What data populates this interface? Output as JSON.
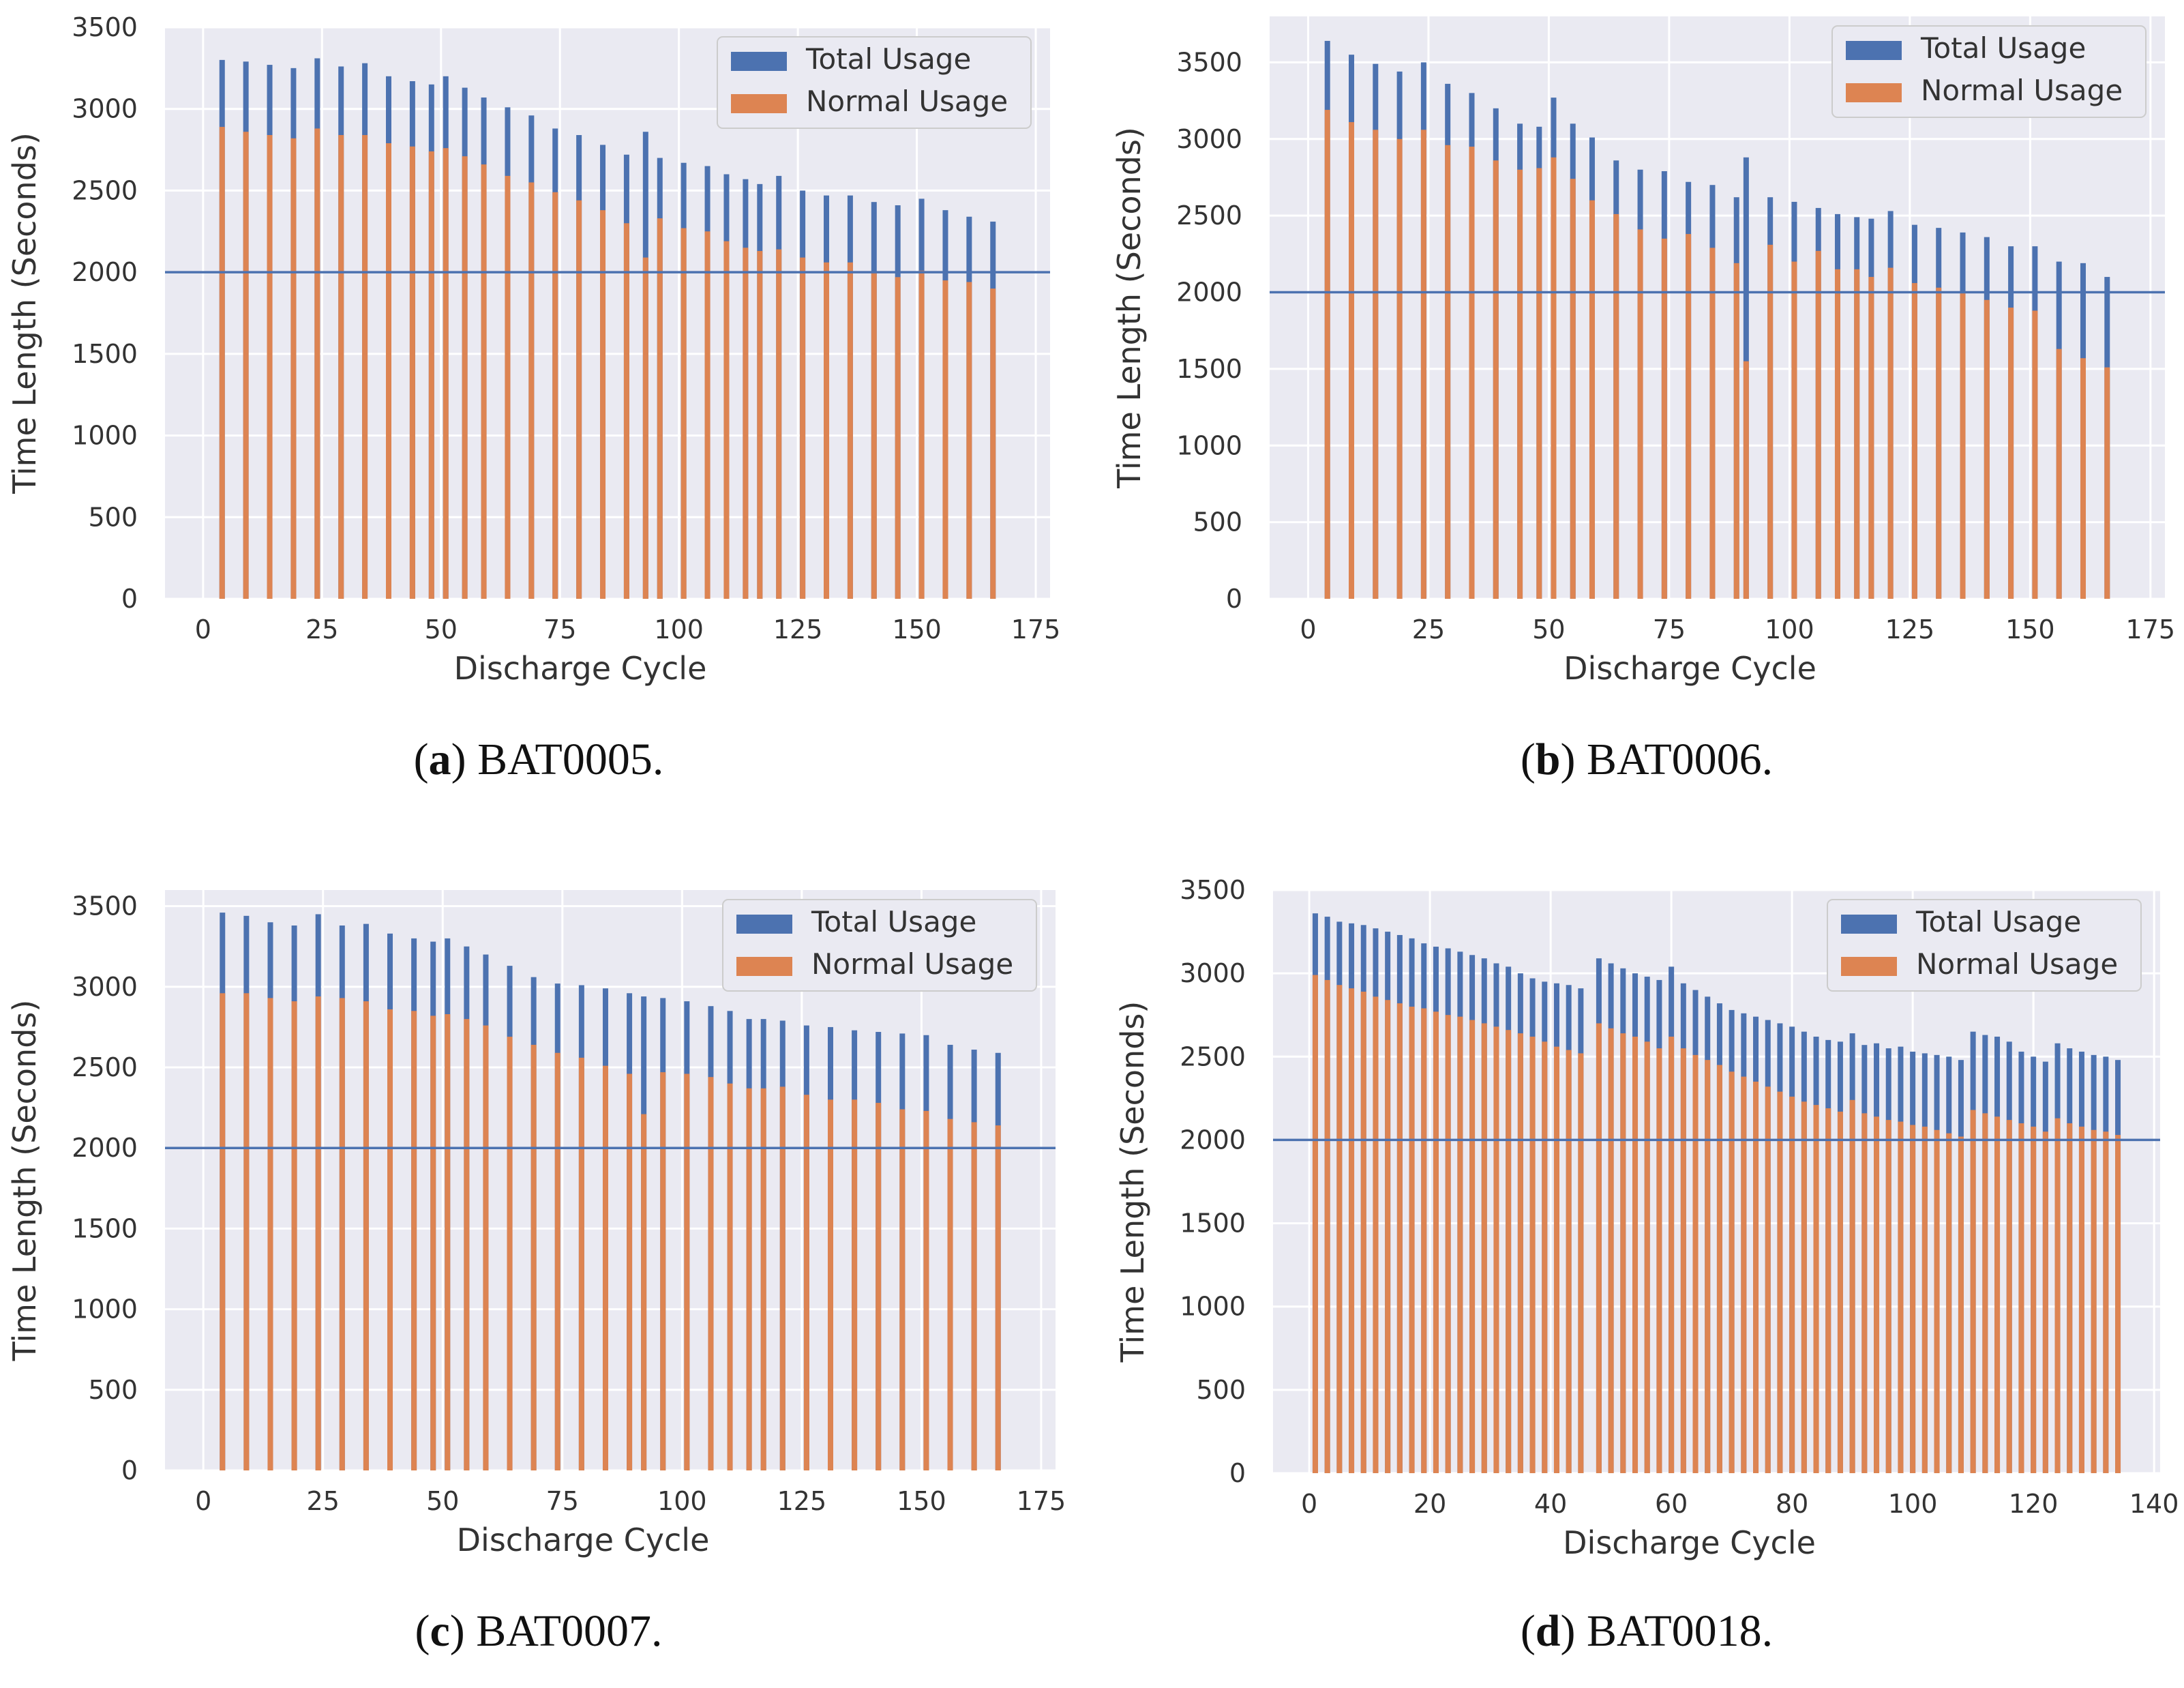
{
  "chart_data": [
    {
      "id": "a",
      "type": "bar",
      "caption_letter": "a",
      "caption_text": "BAT0005.",
      "xlabel": "Discharge Cycle",
      "ylabel": "Time Length (Seconds)",
      "xlim": [
        -8,
        178
      ],
      "ylim": [
        0,
        3500
      ],
      "xticks": [
        0,
        25,
        50,
        75,
        100,
        125,
        150,
        175
      ],
      "yticks": [
        0,
        500,
        1000,
        1500,
        2000,
        2500,
        3000,
        3500
      ],
      "threshold": 2000,
      "legend": [
        "Total Usage",
        "Normal Usage"
      ],
      "legend_position": "top-right",
      "x": [
        4,
        9,
        14,
        19,
        24,
        29,
        34,
        39,
        44,
        48,
        51,
        55,
        59,
        64,
        69,
        74,
        79,
        84,
        89,
        93,
        96,
        101,
        106,
        110,
        114,
        117,
        121,
        126,
        131,
        136,
        141,
        146,
        151,
        156,
        161,
        166
      ],
      "series": [
        {
          "name": "Total Usage",
          "values": [
            3300,
            3290,
            3270,
            3250,
            3310,
            3260,
            3280,
            3200,
            3170,
            3150,
            3200,
            3130,
            3070,
            3010,
            2960,
            2880,
            2840,
            2780,
            2720,
            2860,
            2700,
            2670,
            2650,
            2600,
            2570,
            2540,
            2590,
            2500,
            2470,
            2470,
            2430,
            2410,
            2450,
            2380,
            2340,
            2310
          ]
        },
        {
          "name": "Normal Usage",
          "values": [
            2890,
            2860,
            2840,
            2820,
            2880,
            2840,
            2840,
            2790,
            2770,
            2740,
            2760,
            2710,
            2660,
            2590,
            2550,
            2490,
            2440,
            2380,
            2300,
            2090,
            2330,
            2270,
            2250,
            2190,
            2150,
            2130,
            2140,
            2090,
            2060,
            2060,
            2000,
            1970,
            2010,
            1950,
            1940,
            1900
          ]
        }
      ]
    },
    {
      "id": "b",
      "type": "bar",
      "caption_letter": "b",
      "caption_text": "BAT0006.",
      "xlabel": "Discharge Cycle",
      "ylabel": "Time Length (Seconds)",
      "xlim": [
        -8,
        178
      ],
      "ylim": [
        0,
        3800
      ],
      "xticks": [
        0,
        25,
        50,
        75,
        100,
        125,
        150,
        175
      ],
      "yticks": [
        0,
        500,
        1000,
        1500,
        2000,
        2500,
        3000,
        3500
      ],
      "threshold": 2000,
      "legend": [
        "Total Usage",
        "Normal Usage"
      ],
      "legend_position": "top-right",
      "x": [
        4,
        9,
        14,
        19,
        24,
        29,
        34,
        39,
        44,
        48,
        51,
        55,
        59,
        64,
        69,
        74,
        79,
        84,
        89,
        91,
        96,
        101,
        106,
        110,
        114,
        117,
        121,
        126,
        131,
        136,
        141,
        146,
        151,
        156,
        161,
        166
      ],
      "series": [
        {
          "name": "Total Usage",
          "values": [
            3640,
            3550,
            3490,
            3440,
            3500,
            3360,
            3300,
            3200,
            3100,
            3080,
            3270,
            3100,
            3010,
            2860,
            2800,
            2790,
            2720,
            2700,
            2620,
            2880,
            2620,
            2590,
            2550,
            2510,
            2490,
            2480,
            2530,
            2440,
            2420,
            2390,
            2360,
            2300,
            2300,
            2200,
            2190,
            2100
          ]
        },
        {
          "name": "Normal Usage",
          "values": [
            3190,
            3110,
            3060,
            3000,
            3060,
            2960,
            2950,
            2860,
            2800,
            2810,
            2880,
            2740,
            2600,
            2510,
            2410,
            2350,
            2380,
            2290,
            2190,
            1550,
            2310,
            2200,
            2270,
            2150,
            2150,
            2100,
            2160,
            2060,
            2030,
            2000,
            1950,
            1900,
            1880,
            1630,
            1570,
            1510
          ]
        }
      ]
    },
    {
      "id": "c",
      "type": "bar",
      "caption_letter": "c",
      "caption_text": "BAT0007.",
      "xlabel": "Discharge Cycle",
      "ylabel": "Time Length (Seconds)",
      "xlim": [
        -8,
        178
      ],
      "ylim": [
        0,
        3600
      ],
      "xticks": [
        0,
        25,
        50,
        75,
        100,
        125,
        150,
        175
      ],
      "yticks": [
        0,
        500,
        1000,
        1500,
        2000,
        2500,
        3000,
        3500
      ],
      "threshold": 2000,
      "legend": [
        "Total Usage",
        "Normal Usage"
      ],
      "legend_position": "top-right",
      "x": [
        4,
        9,
        14,
        19,
        24,
        29,
        34,
        39,
        44,
        48,
        51,
        55,
        59,
        64,
        69,
        74,
        79,
        84,
        89,
        92,
        96,
        101,
        106,
        110,
        114,
        117,
        121,
        126,
        131,
        136,
        141,
        146,
        151,
        156,
        161,
        166
      ],
      "series": [
        {
          "name": "Total Usage",
          "values": [
            3460,
            3440,
            3400,
            3380,
            3450,
            3380,
            3390,
            3330,
            3300,
            3280,
            3300,
            3250,
            3200,
            3130,
            3060,
            3020,
            3010,
            2990,
            2960,
            2940,
            2930,
            2910,
            2880,
            2850,
            2800,
            2800,
            2790,
            2760,
            2750,
            2730,
            2720,
            2710,
            2700,
            2640,
            2610,
            2590
          ]
        },
        {
          "name": "Normal Usage",
          "values": [
            2960,
            2960,
            2930,
            2910,
            2940,
            2930,
            2910,
            2860,
            2850,
            2820,
            2830,
            2800,
            2760,
            2690,
            2640,
            2590,
            2560,
            2510,
            2460,
            2210,
            2470,
            2460,
            2440,
            2400,
            2370,
            2370,
            2380,
            2330,
            2300,
            2300,
            2280,
            2240,
            2230,
            2180,
            2160,
            2140
          ]
        }
      ]
    },
    {
      "id": "d",
      "type": "bar",
      "caption_letter": "d",
      "caption_text": "BAT0018.",
      "xlabel": "Discharge Cycle",
      "ylabel": "Time Length (Seconds)",
      "xlim": [
        -6,
        141
      ],
      "ylim": [
        0,
        3500
      ],
      "xticks": [
        0,
        20,
        40,
        60,
        80,
        100,
        120,
        140
      ],
      "yticks": [
        0,
        500,
        1000,
        1500,
        2000,
        2500,
        3000,
        3500
      ],
      "threshold": 2000,
      "legend": [
        "Total Usage",
        "Normal Usage"
      ],
      "legend_position": "top-right",
      "x": [
        1,
        3,
        5,
        7,
        9,
        11,
        13,
        15,
        17,
        19,
        21,
        23,
        25,
        27,
        29,
        31,
        33,
        35,
        37,
        39,
        41,
        43,
        45,
        48,
        50,
        52,
        54,
        56,
        58,
        60,
        62,
        64,
        66,
        68,
        70,
        72,
        74,
        76,
        78,
        80,
        82,
        84,
        86,
        88,
        90,
        92,
        94,
        96,
        98,
        100,
        102,
        104,
        106,
        108,
        110,
        112,
        114,
        116,
        118,
        120,
        122,
        124,
        126,
        128,
        130,
        132,
        134
      ],
      "series": [
        {
          "name": "Total Usage",
          "values": [
            3360,
            3340,
            3310,
            3300,
            3290,
            3270,
            3250,
            3230,
            3210,
            3180,
            3160,
            3150,
            3130,
            3110,
            3090,
            3060,
            3040,
            3000,
            2970,
            2950,
            2940,
            2930,
            2910,
            3090,
            3060,
            3030,
            3000,
            2980,
            2960,
            3040,
            2940,
            2900,
            2860,
            2820,
            2780,
            2760,
            2740,
            2720,
            2700,
            2680,
            2650,
            2620,
            2600,
            2590,
            2640,
            2570,
            2580,
            2550,
            2560,
            2530,
            2520,
            2510,
            2500,
            2480,
            2650,
            2630,
            2620,
            2590,
            2530,
            2500,
            2470,
            2580,
            2550,
            2530,
            2510,
            2500,
            2480
          ]
        },
        {
          "name": "Normal Usage",
          "values": [
            2990,
            2960,
            2930,
            2910,
            2890,
            2860,
            2840,
            2820,
            2800,
            2790,
            2770,
            2750,
            2740,
            2720,
            2700,
            2680,
            2660,
            2640,
            2620,
            2590,
            2560,
            2540,
            2520,
            2700,
            2670,
            2640,
            2620,
            2590,
            2550,
            2620,
            2550,
            2510,
            2480,
            2450,
            2410,
            2380,
            2350,
            2320,
            2290,
            2260,
            2230,
            2210,
            2190,
            2170,
            2240,
            2160,
            2140,
            2120,
            2110,
            2090,
            2080,
            2060,
            2040,
            2020,
            2180,
            2160,
            2140,
            2120,
            2100,
            2080,
            2050,
            2130,
            2100,
            2080,
            2060,
            2050,
            2030
          ]
        }
      ]
    }
  ]
}
